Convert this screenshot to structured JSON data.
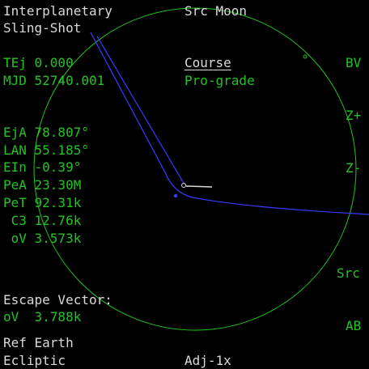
{
  "header": {
    "title_line1": "Interplanetary",
    "title_line2": "Sling-Shot",
    "source": "Src Moon"
  },
  "status": {
    "tej": "TEj 0.000",
    "mjd": "MJD 52740.001"
  },
  "course": {
    "label": "Course",
    "value": "Pro-grade"
  },
  "params": {
    "eja": "EjA 78.807°",
    "lan": "LAN 55.185°",
    "ein": "EIn -0.39°",
    "pea": "PeA 23.30M",
    "pet": "PeT 92.31k",
    "c3": " C3 12.76k",
    "ov": " oV 3.573k"
  },
  "escape": {
    "label": "Escape Vector:",
    "value": "oV  3.788k"
  },
  "footer": {
    "ref": "Ref Earth",
    "frame": "Ecliptic",
    "adj": "Adj-1x"
  },
  "buttons": {
    "bv": "BV",
    "zplus": "Z+",
    "zminus": "Z-",
    "src": "Src",
    "ab": "AB"
  },
  "colors": {
    "text_white": "#d9d9d9",
    "text_green": "#22c322",
    "orbit_circle": "#22c322",
    "trajectory": "#3a3aff",
    "background": "#000000"
  }
}
